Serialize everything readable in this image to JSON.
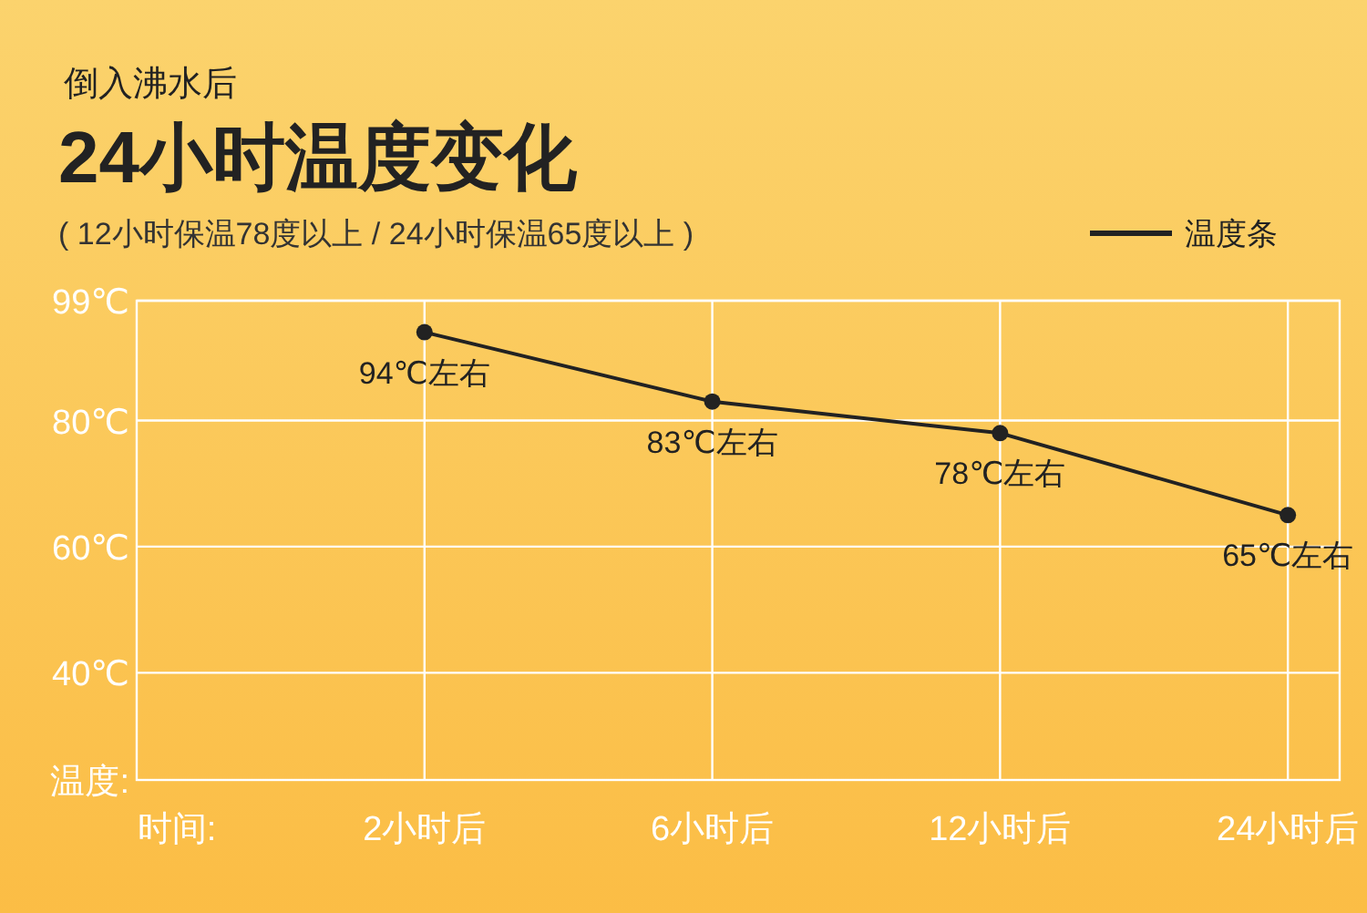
{
  "chart_data": {
    "type": "line",
    "title": "24小时温度变化",
    "subtitle": "倒入沸水后",
    "annotations": [
      "( 12小时保温78度以上 / 24小时保温65度以上 )"
    ],
    "xlabel": "时间:",
    "ylabel": "温度:",
    "categories": [
      "2小时后",
      "6小时后",
      "12小时后",
      "24小时后"
    ],
    "series": [
      {
        "name": "温度条",
        "color": "#222222",
        "values": [
          94,
          83,
          78,
          65
        ],
        "value_labels": [
          "94℃左右",
          "83℃左右",
          "78℃左右",
          "65℃左右"
        ]
      }
    ],
    "ylim": [
      23,
      99
    ],
    "yticks": [
      {
        "value": 99,
        "label": "99℃"
      },
      {
        "value": 80,
        "label": "80℃"
      },
      {
        "value": 60,
        "label": "60℃"
      },
      {
        "value": 40,
        "label": "40℃"
      }
    ],
    "grid": true,
    "legend": "top right",
    "marker": "circle",
    "line_style": "solid"
  }
}
